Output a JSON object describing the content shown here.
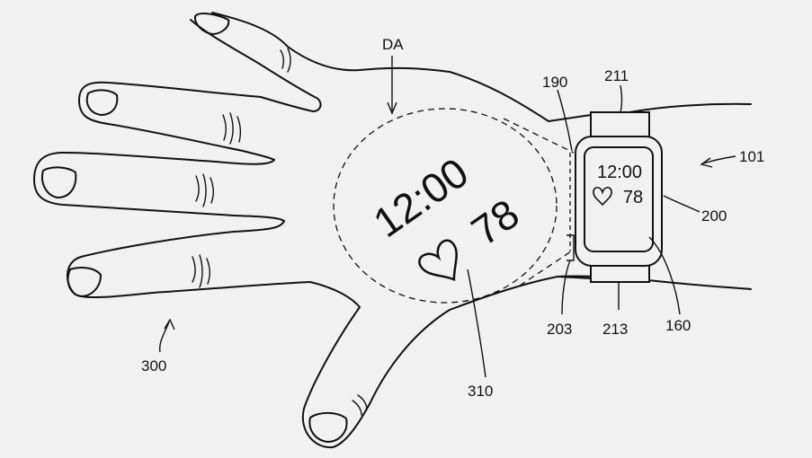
{
  "figure": {
    "projected_display": {
      "time": "12:00",
      "heart_icon": "heart-outline-icon",
      "heart_rate": "78"
    },
    "watch_display": {
      "time": "12:00",
      "heart_icon": "heart-outline-icon",
      "heart_rate": "78"
    },
    "reference_labels": {
      "display_area": "DA",
      "device": "101",
      "sensor": "190",
      "strap_top": "211",
      "strap_bottom": "213",
      "watch_body": "200",
      "projector": "203",
      "display": "160",
      "hand": "300",
      "projected_image": "310"
    }
  }
}
